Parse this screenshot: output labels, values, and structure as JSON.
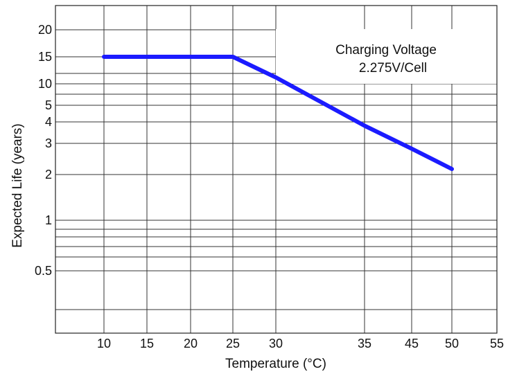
{
  "chart_data": {
    "type": "line",
    "title": "",
    "xlabel": "Temperature (°C)",
    "ylabel": "Expected Life (years)",
    "y_scale": "non-uniform (log-like)",
    "grid": true,
    "x_tick_labels": [
      "10",
      "15",
      "20",
      "25",
      "30",
      "35",
      "45",
      "50",
      "55"
    ],
    "y_tick_labels": [
      "20",
      "15",
      "10",
      "5",
      "4",
      "3",
      "2",
      "1",
      "0.5"
    ],
    "series": [
      {
        "color": "#1b1bff",
        "points": [
          {
            "x": 10,
            "y": 15
          },
          {
            "x": 25,
            "y": 15
          },
          {
            "x": 30,
            "y": 11
          },
          {
            "x": 35,
            "y": 3.8
          },
          {
            "x": 45,
            "y": 2.8
          },
          {
            "x": 50,
            "y": 2.15
          }
        ]
      }
    ],
    "annotation": {
      "line1": "Charging Voltage",
      "line2": "2.275V/Cell",
      "placement": "top-right"
    }
  }
}
